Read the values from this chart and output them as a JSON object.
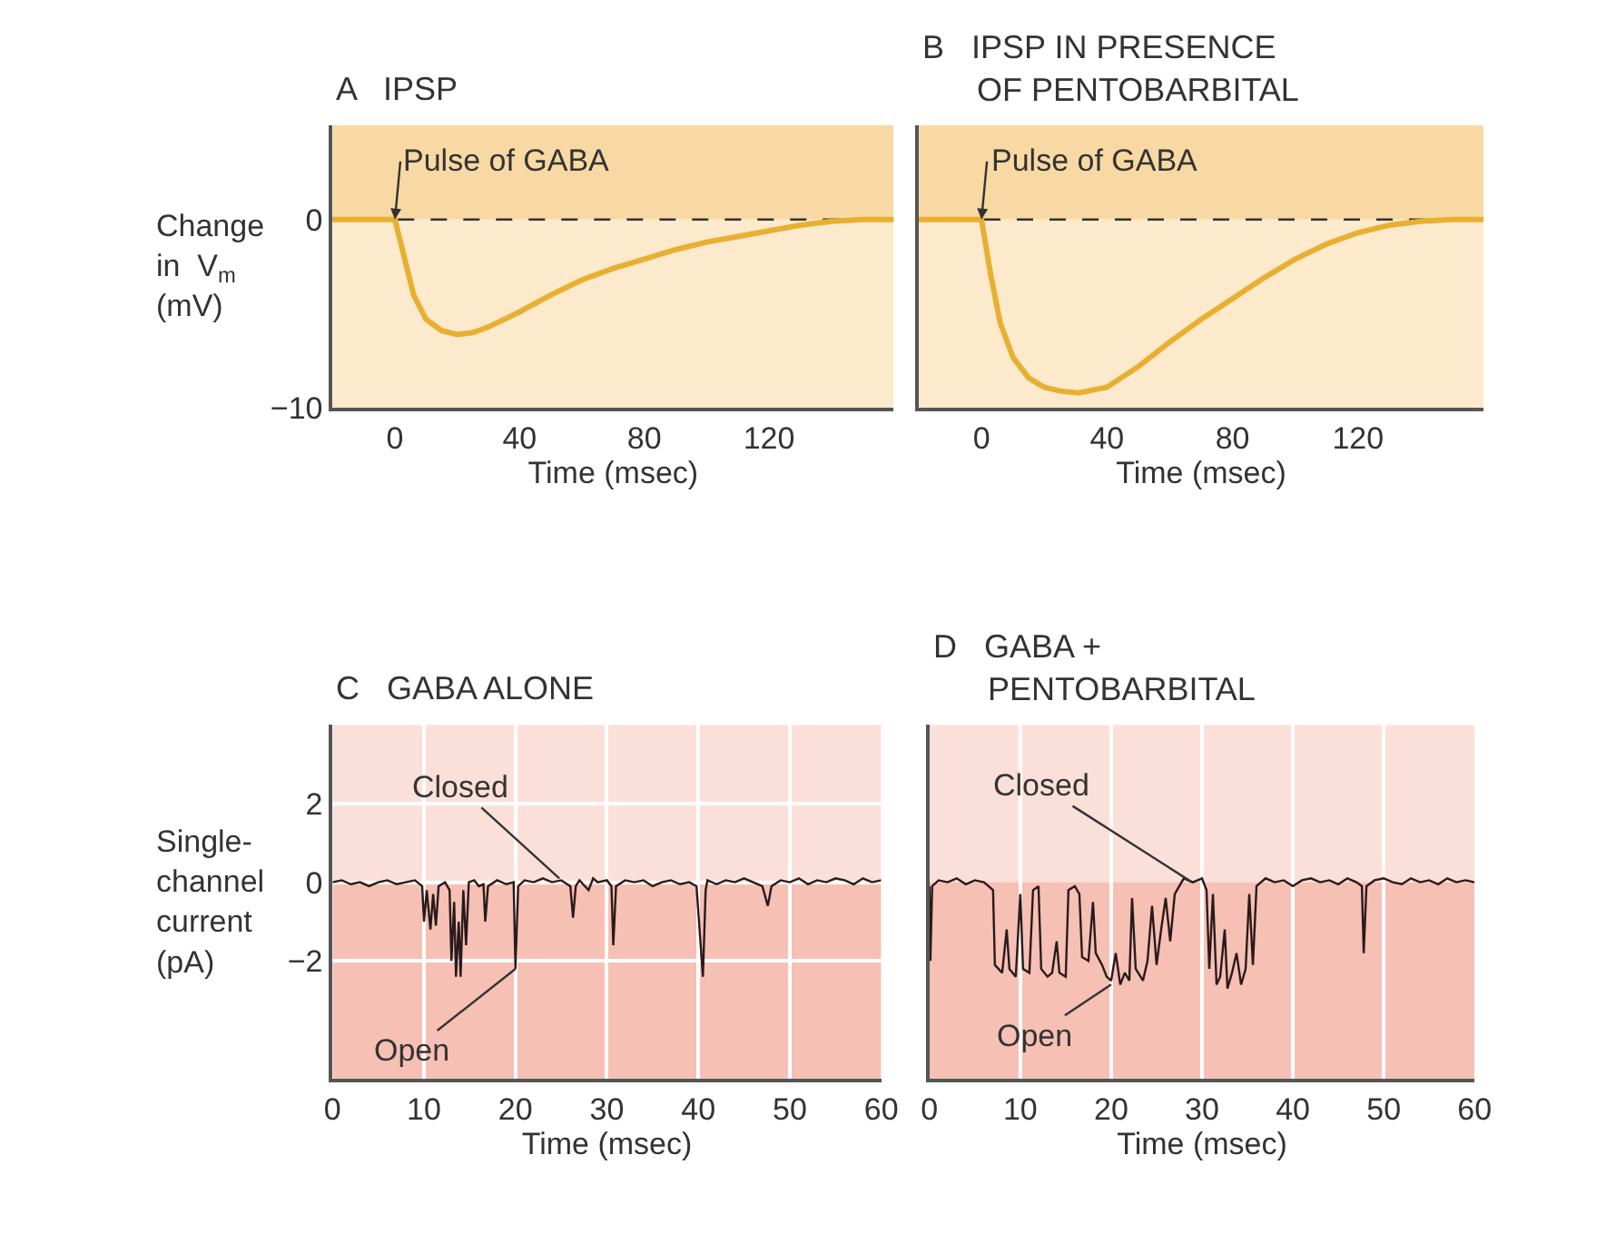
{
  "chart_data": [
    {
      "type": "line",
      "title": "A   IPSP",
      "ylabel": "Change\nin  V$_{m}$\n(mV)",
      "xlabel": "Time (msec)",
      "xlim": [
        -20,
        160
      ],
      "ylim": [
        -10,
        5
      ],
      "xticks": [
        0,
        40,
        80,
        120
      ],
      "yticks": [
        0,
        {
          "value": -10,
          "label": "−10"
        }
      ],
      "grid": false,
      "series": [
        {
          "color": "#e8b030",
          "x": [
            -20,
            0,
            3,
            6,
            10,
            15,
            20,
            25,
            30,
            40,
            50,
            60,
            70,
            80,
            90,
            100,
            110,
            120,
            130,
            140,
            150,
            160
          ],
          "values": [
            0,
            0,
            -2,
            -4,
            -5.3,
            -5.9,
            -6.1,
            -6.0,
            -5.7,
            -4.9,
            -4.0,
            -3.2,
            -2.6,
            -2.1,
            -1.6,
            -1.2,
            -0.9,
            -0.6,
            -0.3,
            -0.1,
            0,
            0
          ]
        }
      ],
      "ref_lines": [
        {
          "axis": "y",
          "value": 0,
          "color": "#333333",
          "line_style": "dashed"
        }
      ],
      "bands": [
        {
          "axis": "y",
          "from": 0,
          "to": 5,
          "color": "#f9d9a3"
        },
        {
          "axis": "y",
          "from": -10,
          "to": 0,
          "color": "#fde9cb"
        }
      ],
      "annotations": [
        {
          "text": "Pulse of GABA",
          "x": 0,
          "y": 0
        }
      ]
    },
    {
      "type": "line",
      "title": "B   IPSP IN PRESENCE\n      OF PENTOBARBITAL",
      "xlabel": "Time (msec)",
      "xlim": [
        -20,
        160
      ],
      "ylim": [
        -10,
        5
      ],
      "xticks": [
        0,
        40,
        80,
        120
      ],
      "grid": false,
      "tick_labels": "x",
      "series": [
        {
          "color": "#e8b030",
          "x": [
            -20,
            0,
            3,
            6,
            10,
            15,
            20,
            25,
            31,
            40,
            50,
            60,
            70,
            80,
            90,
            100,
            110,
            120,
            130,
            140,
            150,
            160
          ],
          "values": [
            0,
            0,
            -3,
            -5.5,
            -7.3,
            -8.4,
            -8.9,
            -9.1,
            -9.2,
            -8.9,
            -7.8,
            -6.5,
            -5.3,
            -4.2,
            -3.1,
            -2.1,
            -1.3,
            -0.7,
            -0.3,
            -0.1,
            0,
            0
          ]
        }
      ],
      "ref_lines": [
        {
          "axis": "y",
          "value": 0,
          "color": "#333333",
          "line_style": "dashed"
        }
      ],
      "bands": [
        {
          "axis": "y",
          "from": 0,
          "to": 5,
          "color": "#f9d9a3"
        },
        {
          "axis": "y",
          "from": -10,
          "to": 0,
          "color": "#fde9cb"
        }
      ],
      "annotations": [
        {
          "text": "Pulse of GABA",
          "x": 0,
          "y": 0
        }
      ]
    },
    {
      "type": "line",
      "title": "C   GABA ALONE",
      "ylabel": "Single-\nchannel\ncurrent\n(pA)",
      "xlabel": "Time (msec)",
      "xlim": [
        0,
        60
      ],
      "ylim": [
        -5,
        4
      ],
      "xticks": [
        0,
        10,
        20,
        30,
        40,
        50,
        60
      ],
      "yticks": [
        2,
        0,
        {
          "value": -2,
          "label": "−2"
        }
      ],
      "grid": true,
      "series": [
        {
          "color": "#2a1a1a",
          "x": [
            0,
            1,
            2,
            3,
            4,
            5,
            6,
            7,
            8,
            9,
            9.8,
            10,
            10.3,
            10.7,
            11,
            11.3,
            11.6,
            12.3,
            12.8,
            13,
            13.3,
            13.5,
            13.8,
            14,
            14.3,
            14.6,
            14.9,
            15.5,
            16,
            16.5,
            16.7,
            17,
            18,
            19,
            19.8,
            20,
            20.3,
            21,
            22,
            23,
            24,
            25,
            26,
            26.3,
            26.6,
            27,
            28,
            28.5,
            29,
            30,
            30.5,
            30.7,
            31,
            32,
            33,
            34,
            35,
            36,
            37,
            38,
            39,
            39.8,
            40.5,
            40.8,
            41,
            42,
            43,
            44,
            45,
            46,
            47,
            47.6,
            48,
            49,
            50,
            51,
            52,
            53,
            54,
            55,
            56,
            57,
            58,
            59,
            60
          ],
          "values": [
            0,
            0.05,
            -0.05,
            0,
            -0.1,
            0,
            0.05,
            -0.05,
            0,
            0.05,
            -0.1,
            -1.0,
            -0.2,
            -1.2,
            -0.3,
            -1.1,
            -0.1,
            0,
            -0.2,
            -2.0,
            -0.5,
            -2.4,
            -1.0,
            -2.4,
            -0.2,
            -1.6,
            0,
            0.05,
            -0.1,
            -0.05,
            -1.0,
            -0.1,
            0.05,
            -0.05,
            0,
            -2.2,
            -0.1,
            0.05,
            0,
            0.1,
            0,
            0.05,
            -0.1,
            -0.9,
            -0.1,
            0.05,
            -0.2,
            0.1,
            0,
            0.05,
            -0.1,
            -1.6,
            -0.1,
            0.05,
            0,
            0.05,
            -0.1,
            0,
            0.05,
            -0.05,
            0,
            -0.1,
            -2.4,
            -0.2,
            0.05,
            -0.05,
            0.05,
            0,
            0.1,
            0,
            -0.1,
            -0.6,
            -0.1,
            0.05,
            0,
            0.1,
            -0.05,
            0.05,
            0,
            0.1,
            0.05,
            -0.05,
            0.1,
            0,
            0.05
          ]
        }
      ],
      "bands": [
        {
          "axis": "y",
          "from": 0,
          "to": 4,
          "color": "#fbe0da"
        },
        {
          "axis": "y",
          "from": -5,
          "to": 0,
          "color": "#f6c0b5"
        }
      ],
      "annotations": [
        {
          "text": "Closed",
          "x": 24.8,
          "y": 0.1
        },
        {
          "text": "Open",
          "x": 20,
          "y": -2.2
        }
      ]
    },
    {
      "type": "line",
      "title": "D   GABA +\n      PENTOBARBITAL",
      "xlabel": "Time (msec)",
      "xlim": [
        0,
        60
      ],
      "ylim": [
        -5,
        4
      ],
      "xticks": [
        0,
        10,
        20,
        30,
        40,
        50,
        60
      ],
      "grid": true,
      "tick_labels": "x",
      "series": [
        {
          "color": "#2a1a1a",
          "x": [
            0,
            0.1,
            0.3,
            1,
            2,
            3,
            4,
            5,
            6,
            6.5,
            7,
            7.2,
            8,
            8.5,
            8.8,
            9.5,
            10,
            10.3,
            11,
            11.4,
            12,
            12.3,
            13,
            13.5,
            14,
            14.3,
            15,
            15.3,
            16,
            16.5,
            16.8,
            17.5,
            18,
            18.3,
            19,
            19.5,
            20,
            20.5,
            21,
            21.5,
            22,
            22.3,
            22.7,
            23.5,
            24,
            24.5,
            25,
            25.5,
            26,
            26.5,
            27,
            27.5,
            28,
            29,
            30,
            30.5,
            30.8,
            31.2,
            31.6,
            32,
            32.5,
            32.8,
            33.3,
            33.8,
            34.3,
            34.8,
            35.2,
            35.6,
            36,
            37,
            38,
            39,
            40,
            41,
            42,
            43,
            44,
            45,
            46,
            47,
            47.6,
            47.8,
            48.1,
            49,
            50,
            51,
            52,
            53,
            54,
            55,
            56,
            57,
            58,
            59,
            60
          ],
          "values": [
            -0.1,
            -2.0,
            -0.1,
            0.05,
            0,
            0.1,
            -0.05,
            0.05,
            0,
            -0.1,
            -0.2,
            -2.1,
            -2.3,
            -1.2,
            -2.2,
            -2.4,
            -0.3,
            -2.2,
            -2.3,
            -0.2,
            -0.1,
            -2.2,
            -2.4,
            -2.3,
            -1.5,
            -2.3,
            -2.4,
            -0.2,
            -0.1,
            -0.3,
            -1.9,
            -2.0,
            -0.5,
            -1.8,
            -2.1,
            -2.4,
            -2.5,
            -1.8,
            -2.6,
            -2.3,
            -2.5,
            -0.4,
            -2.2,
            -2.5,
            -2.0,
            -0.6,
            -2.1,
            -1.2,
            -0.4,
            -1.5,
            -0.3,
            -0.1,
            0.1,
            0,
            0.1,
            -0.2,
            -2.2,
            -0.3,
            -2.6,
            -2.4,
            -1.2,
            -2.7,
            -2.3,
            -1.8,
            -2.6,
            -2.2,
            -0.3,
            -2.1,
            -0.1,
            0.1,
            0,
            0.05,
            -0.1,
            0.05,
            0.1,
            0,
            0.05,
            -0.05,
            0.1,
            0,
            -0.1,
            -1.8,
            -0.1,
            0.05,
            0.1,
            0,
            -0.05,
            0.1,
            0,
            0.05,
            -0.05,
            0.1,
            0,
            0.05,
            0
          ]
        }
      ],
      "bands": [
        {
          "axis": "y",
          "from": 0,
          "to": 4,
          "color": "#fbe0da"
        },
        {
          "axis": "y",
          "from": -5,
          "to": 0,
          "color": "#f6c0b5"
        }
      ],
      "annotations": [
        {
          "text": "Closed",
          "x": 28.9,
          "y": 0
        },
        {
          "text": "Open",
          "x": 20,
          "y": -2.6
        }
      ]
    }
  ]
}
